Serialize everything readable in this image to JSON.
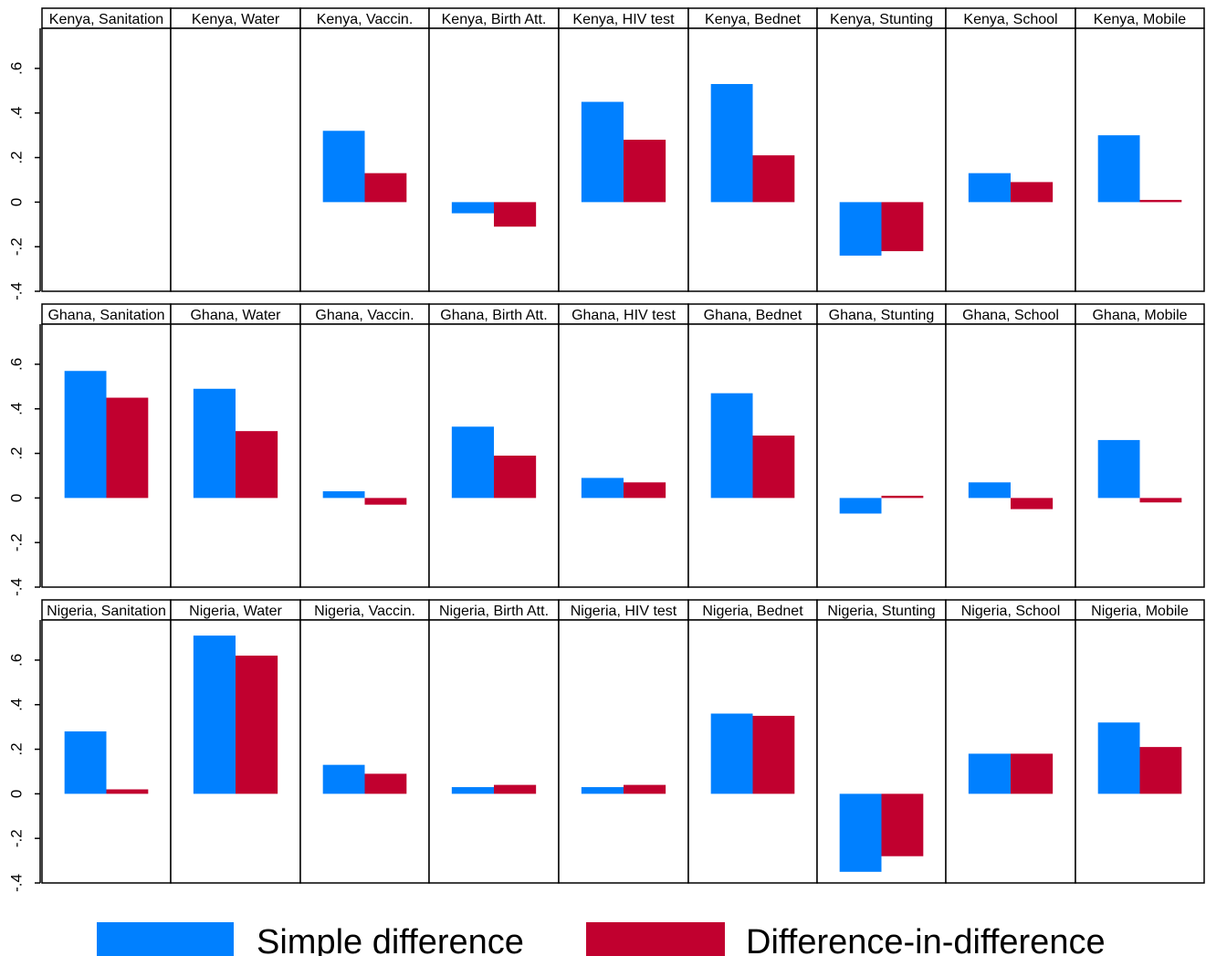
{
  "colors": {
    "simple": "#0080ff",
    "did": "#c1002f"
  },
  "legend": {
    "simple_label": "Simple difference",
    "did_label": "Difference-in-difference"
  },
  "chart_data": {
    "type": "bar",
    "ylim": [
      -0.4,
      0.78
    ],
    "yticks": [
      -0.4,
      -0.2,
      0,
      0.2,
      0.4,
      0.6
    ],
    "ytick_labels": [
      "-.4",
      "-.2",
      "0",
      ".2",
      ".4",
      ".6"
    ],
    "grid": false,
    "legend_position": "bottom",
    "series_names": [
      "Simple difference",
      "Difference-in-difference"
    ],
    "rows": [
      {
        "panels": [
          {
            "title": "Kenya, Sanitation",
            "simple": null,
            "did": null
          },
          {
            "title": "Kenya, Water",
            "simple": null,
            "did": null
          },
          {
            "title": "Kenya, Vaccin.",
            "simple": 0.32,
            "did": 0.13
          },
          {
            "title": "Kenya, Birth Att.",
            "simple": -0.05,
            "did": -0.11
          },
          {
            "title": "Kenya, HIV test",
            "simple": 0.45,
            "did": 0.28
          },
          {
            "title": "Kenya, Bednet",
            "simple": 0.53,
            "did": 0.21
          },
          {
            "title": "Kenya, Stunting",
            "simple": -0.24,
            "did": -0.22
          },
          {
            "title": "Kenya, School",
            "simple": 0.13,
            "did": 0.09
          },
          {
            "title": "Kenya, Mobile",
            "simple": 0.3,
            "did": 0.01
          }
        ]
      },
      {
        "panels": [
          {
            "title": "Ghana, Sanitation",
            "simple": 0.57,
            "did": 0.45
          },
          {
            "title": "Ghana, Water",
            "simple": 0.49,
            "did": 0.3
          },
          {
            "title": "Ghana, Vaccin.",
            "simple": 0.03,
            "did": -0.03
          },
          {
            "title": "Ghana, Birth Att.",
            "simple": 0.32,
            "did": 0.19
          },
          {
            "title": "Ghana, HIV test",
            "simple": 0.09,
            "did": 0.07
          },
          {
            "title": "Ghana, Bednet",
            "simple": 0.47,
            "did": 0.28
          },
          {
            "title": "Ghana, Stunting",
            "simple": -0.07,
            "did": 0.01
          },
          {
            "title": "Ghana, School",
            "simple": 0.07,
            "did": -0.05
          },
          {
            "title": "Ghana, Mobile",
            "simple": 0.26,
            "did": -0.02
          }
        ]
      },
      {
        "panels": [
          {
            "title": "Nigeria, Sanitation",
            "simple": 0.28,
            "did": 0.02
          },
          {
            "title": "Nigeria, Water",
            "simple": 0.71,
            "did": 0.62
          },
          {
            "title": "Nigeria, Vaccin.",
            "simple": 0.13,
            "did": 0.09
          },
          {
            "title": "Nigeria, Birth Att.",
            "simple": 0.03,
            "did": 0.04
          },
          {
            "title": "Nigeria, HIV test",
            "simple": 0.03,
            "did": 0.04
          },
          {
            "title": "Nigeria, Bednet",
            "simple": 0.36,
            "did": 0.35
          },
          {
            "title": "Nigeria, Stunting",
            "simple": -0.35,
            "did": -0.28
          },
          {
            "title": "Nigeria, School",
            "simple": 0.18,
            "did": 0.18
          },
          {
            "title": "Nigeria, Mobile",
            "simple": 0.32,
            "did": 0.21
          }
        ]
      }
    ]
  }
}
